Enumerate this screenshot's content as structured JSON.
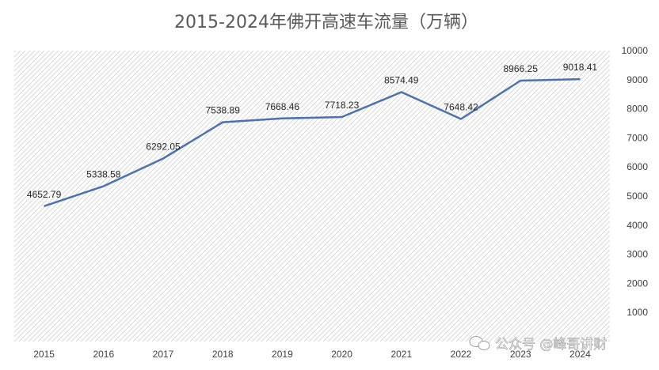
{
  "chart_data": {
    "type": "line",
    "title": "2015-2024年佛开高速车流量（万辆）",
    "xlabel": "",
    "ylabel": "",
    "categories": [
      "2015",
      "2016",
      "2017",
      "2018",
      "2019",
      "2020",
      "2021",
      "2022",
      "2023",
      "2024"
    ],
    "series": [
      {
        "values": [
          4652.79,
          5338.58,
          6292.05,
          7538.89,
          7668.46,
          7718.23,
          8574.49,
          7648.42,
          8966.25,
          9018.41
        ]
      }
    ],
    "data_labels": [
      "4652.79",
      "5338.58",
      "6292.05",
      "7538.89",
      "7668.46",
      "7718.23",
      "8574.49",
      "7648.42",
      "8966.25",
      "9018.41"
    ],
    "ylim": [
      0,
      10000
    ],
    "yticks": [
      "1000",
      "2000",
      "3000",
      "4000",
      "5000",
      "6000",
      "7000",
      "8000",
      "9000",
      "10000"
    ],
    "y_axis_side": "right",
    "plot_background": "hatched",
    "grid": false,
    "colors": {
      "line": "#4a72ae",
      "hatch": "#d9d9d9",
      "title": "#595959"
    }
  },
  "watermark": {
    "icon": "wechat-icon",
    "text": "公众号 @峰哥讲财"
  }
}
